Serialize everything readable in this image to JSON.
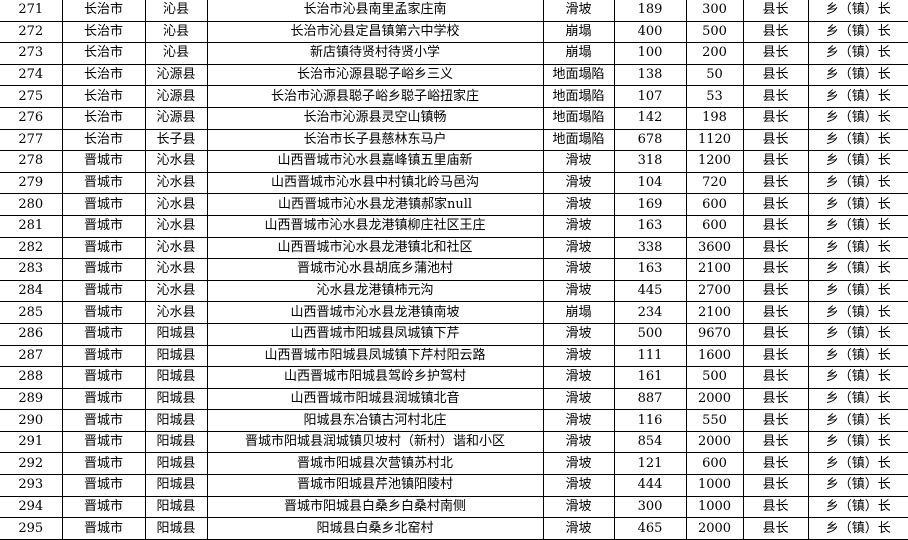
{
  "rows": [
    [
      "271",
      "长治市",
      "沁县",
      "长治市沁县南里孟家庄南",
      "滑坡",
      "189",
      "300",
      "县长",
      "乡（镇）长"
    ],
    [
      "272",
      "长治市",
      "沁县",
      "长治市沁县定昌镇第六中学校",
      "崩塌",
      "400",
      "500",
      "县长",
      "乡（镇）长"
    ],
    [
      "273",
      "长治市",
      "沁县",
      "新店镇待贤村待贤小学",
      "崩塌",
      "100",
      "200",
      "县长",
      "乡（镇）长"
    ],
    [
      "274",
      "长治市",
      "沁源县",
      "长治市沁源县聪子峪乡三义",
      "地面塌陷",
      "138",
      "50",
      "县长",
      "乡（镇）长"
    ],
    [
      "275",
      "长治市",
      "沁源县",
      "长治市沁源县聪子峪乡聪子峪扭家庄",
      "地面塌陷",
      "107",
      "53",
      "县长",
      "乡（镇）长"
    ],
    [
      "276",
      "长治市",
      "沁源县",
      "长治市沁源县灵空山镇畅",
      "地面塌陷",
      "142",
      "198",
      "县长",
      "乡（镇）长"
    ],
    [
      "277",
      "长治市",
      "长子县",
      "长治市长子县慈林东马户",
      "地面塌陷",
      "678",
      "1120",
      "县长",
      "乡（镇）长"
    ],
    [
      "278",
      "晋城市",
      "沁水县",
      "山西晋城市沁水县嘉峰镇五里庙新",
      "滑坡",
      "318",
      "1200",
      "县长",
      "乡（镇）长"
    ],
    [
      "279",
      "晋城市",
      "沁水县",
      "山西晋城市沁水县中村镇北岭马邑沟",
      "滑坡",
      "104",
      "720",
      "县长",
      "乡（镇）长"
    ],
    [
      "280",
      "晋城市",
      "沁水县",
      "山西晋城市沁水县龙港镇郝家null",
      "滑坡",
      "169",
      "600",
      "县长",
      "乡（镇）长"
    ],
    [
      "281",
      "晋城市",
      "沁水县",
      "山西晋城市沁水县龙港镇柳庄社区王庄",
      "滑坡",
      "163",
      "600",
      "县长",
      "乡（镇）长"
    ],
    [
      "282",
      "晋城市",
      "沁水县",
      "山西晋城市沁水县龙港镇北和社区",
      "滑坡",
      "338",
      "3600",
      "县长",
      "乡（镇）长"
    ],
    [
      "283",
      "晋城市",
      "沁水县",
      "晋城市沁水县胡底乡蒲池村",
      "滑坡",
      "163",
      "2100",
      "县长",
      "乡（镇）长"
    ],
    [
      "284",
      "晋城市",
      "沁水县",
      "沁水县龙港镇柿元沟",
      "滑坡",
      "445",
      "2700",
      "县长",
      "乡（镇）长"
    ],
    [
      "285",
      "晋城市",
      "沁水县",
      "山西晋城市沁水县龙港镇南坡",
      "崩塌",
      "234",
      "2100",
      "县长",
      "乡（镇）长"
    ],
    [
      "286",
      "晋城市",
      "阳城县",
      "山西晋城市阳城县凤城镇下芹",
      "滑坡",
      "500",
      "9670",
      "县长",
      "乡（镇）长"
    ],
    [
      "287",
      "晋城市",
      "阳城县",
      "山西晋城市阳城县凤城镇下芹村阳云路",
      "滑坡",
      "111",
      "1600",
      "县长",
      "乡（镇）长"
    ],
    [
      "288",
      "晋城市",
      "阳城县",
      "山西晋城市阳城县驾岭乡护驾村",
      "滑坡",
      "161",
      "500",
      "县长",
      "乡（镇）长"
    ],
    [
      "289",
      "晋城市",
      "阳城县",
      "山西晋城市阳城县润城镇北音",
      "滑坡",
      "887",
      "2000",
      "县长",
      "乡（镇）长"
    ],
    [
      "290",
      "晋城市",
      "阳城县",
      "阳城县东冶镇古河村北庄",
      "滑坡",
      "116",
      "550",
      "县长",
      "乡（镇）长"
    ],
    [
      "291",
      "晋城市",
      "阳城县",
      "晋城市阳城县润城镇贝坡村（新村）谐和小区",
      "滑坡",
      "854",
      "2000",
      "县长",
      "乡（镇）长"
    ],
    [
      "292",
      "晋城市",
      "阳城县",
      "晋城市阳城县次营镇苏村北",
      "滑坡",
      "121",
      "600",
      "县长",
      "乡（镇）长"
    ],
    [
      "293",
      "晋城市",
      "阳城县",
      "晋城市阳城县芹池镇阳陵村",
      "滑坡",
      "444",
      "1000",
      "县长",
      "乡（镇）长"
    ],
    [
      "294",
      "晋城市",
      "阳城县",
      "晋城市阳城县白桑乡白桑村南侧",
      "滑坡",
      "300",
      "1000",
      "县长",
      "乡（镇）长"
    ],
    [
      "295",
      "晋城市",
      "阳城县",
      "阳城县白桑乡北窑村",
      "滑坡",
      "465",
      "2000",
      "县长",
      "乡（镇）长"
    ]
  ]
}
